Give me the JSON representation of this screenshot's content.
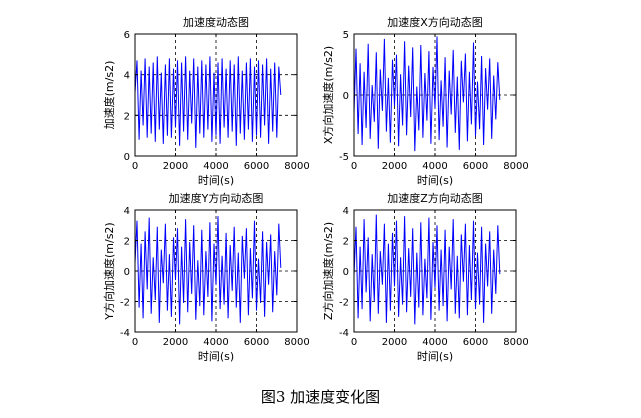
{
  "caption": "图3 加速度变化图",
  "chart_data": [
    {
      "type": "line",
      "title": "加速度动态图",
      "xlabel": "时间(s)",
      "ylabel": "加速度(m/s2)",
      "xlim": [
        0,
        8000
      ],
      "ylim": [
        0,
        6
      ],
      "xticks": [
        0,
        2000,
        4000,
        6000,
        8000
      ],
      "yticks": [
        0,
        2,
        4,
        6
      ],
      "grid": "dashed",
      "series": [
        {
          "color": "#0000ff",
          "x": [
            0,
            100,
            200,
            300,
            400,
            500,
            600,
            700,
            800,
            900,
            1000,
            1100,
            1200,
            1300,
            1400,
            1500,
            1600,
            1700,
            1800,
            1900,
            2000,
            2100,
            2200,
            2300,
            2400,
            2500,
            2600,
            2700,
            2800,
            2900,
            3000,
            3100,
            3200,
            3300,
            3400,
            3500,
            3600,
            3700,
            3800,
            3900,
            4000,
            4100,
            4200,
            4300,
            4400,
            4500,
            4600,
            4700,
            4800,
            4900,
            5000,
            5100,
            5200,
            5300,
            5400,
            5500,
            5600,
            5700,
            5800,
            5900,
            6000,
            6100,
            6200,
            6300,
            6400,
            6500,
            6600,
            6700,
            6800,
            6900,
            7000,
            7100,
            7200
          ],
          "y": [
            3.1,
            4.7,
            0.8,
            4.2,
            1.5,
            4.8,
            0.9,
            4.4,
            1.1,
            4.6,
            0.7,
            4.9,
            1.3,
            4.1,
            0.6,
            4.5,
            1.0,
            4.8,
            0.9,
            4.3,
            1.4,
            4.7,
            0.5,
            4.6,
            1.2,
            4.9,
            0.8,
            4.2,
            1.6,
            4.8,
            0.4,
            4.4,
            1.1,
            4.7,
            0.9,
            4.5,
            1.3,
            4.9,
            0.7,
            4.1,
            1.0,
            4.6,
            0.6,
            4.8,
            1.4,
            4.3,
            0.9,
            4.7,
            1.2,
            4.5,
            0.5,
            4.9,
            1.1,
            4.2,
            0.8,
            4.6,
            1.3,
            4.8,
            0.7,
            4.4,
            1.0,
            4.7,
            0.9,
            4.5,
            1.5,
            4.8,
            0.6,
            4.3,
            1.2,
            4.6,
            0.9,
            4.4,
            3.0
          ]
        }
      ]
    },
    {
      "type": "line",
      "title": "加速度X方向动态图",
      "xlabel": "时间(s)",
      "ylabel": "X方向加速度(m/s2)",
      "xlim": [
        0,
        8000
      ],
      "ylim": [
        -5,
        5
      ],
      "xticks": [
        0,
        2000,
        4000,
        6000,
        8000
      ],
      "yticks": [
        -5,
        0,
        5
      ],
      "grid": "dashed",
      "series": [
        {
          "color": "#0000ff",
          "x": [
            0,
            100,
            200,
            300,
            400,
            500,
            600,
            700,
            800,
            900,
            1000,
            1100,
            1200,
            1300,
            1400,
            1500,
            1600,
            1700,
            1800,
            1900,
            2000,
            2100,
            2200,
            2300,
            2400,
            2500,
            2600,
            2700,
            2800,
            2900,
            3000,
            3100,
            3200,
            3300,
            3400,
            3500,
            3600,
            3700,
            3800,
            3900,
            4000,
            4100,
            4200,
            4300,
            4400,
            4500,
            4600,
            4700,
            4800,
            4900,
            5000,
            5100,
            5200,
            5300,
            5400,
            5500,
            5600,
            5700,
            5800,
            5900,
            6000,
            6100,
            6200,
            6300,
            6400,
            6500,
            6600,
            6700,
            6800,
            6900,
            7000,
            7100,
            7200
          ],
          "y": [
            -1.5,
            3.8,
            -3.2,
            2.6,
            -4.1,
            1.9,
            -2.7,
            4.2,
            -3.6,
            0.8,
            -2.2,
            3.5,
            -4.4,
            2.1,
            -1.3,
            4.6,
            -3.0,
            1.4,
            -3.9,
            2.9,
            -0.9,
            3.3,
            -4.2,
            1.7,
            -2.5,
            4.4,
            -3.3,
            2.4,
            -1.8,
            3.9,
            -4.6,
            0.7,
            -2.9,
            4.1,
            -3.5,
            1.8,
            -2.1,
            3.6,
            -4.0,
            2.3,
            -1.1,
            4.8,
            -3.7,
            1.2,
            -2.6,
            3.1,
            -4.3,
            2.0,
            -1.6,
            3.7,
            -3.1,
            1.5,
            -4.5,
            2.8,
            -0.6,
            3.4,
            -3.8,
            1.9,
            -2.4,
            4.3,
            -3.4,
            1.1,
            -2.8,
            3.2,
            -4.1,
            2.2,
            -1.2,
            3.0,
            -3.6,
            1.6,
            -2.0,
            2.7,
            -0.4
          ]
        }
      ]
    },
    {
      "type": "line",
      "title": "加速度Y方向动态图",
      "xlabel": "时间(s)",
      "ylabel": "Y方向加速度(m/s2)",
      "xlim": [
        0,
        8000
      ],
      "ylim": [
        -4,
        4
      ],
      "xticks": [
        0,
        2000,
        4000,
        6000,
        8000
      ],
      "yticks": [
        -4,
        -2,
        0,
        2,
        4
      ],
      "grid": "dashed",
      "series": [
        {
          "color": "#0000ff",
          "x": [
            0,
            100,
            200,
            300,
            400,
            500,
            600,
            700,
            800,
            900,
            1000,
            1100,
            1200,
            1300,
            1400,
            1500,
            1600,
            1700,
            1800,
            1900,
            2000,
            2100,
            2200,
            2300,
            2400,
            2500,
            2600,
            2700,
            2800,
            2900,
            3000,
            3100,
            3200,
            3300,
            3400,
            3500,
            3600,
            3700,
            3800,
            3900,
            4000,
            4100,
            4200,
            4300,
            4400,
            4500,
            4600,
            4700,
            4800,
            4900,
            5000,
            5100,
            5200,
            5300,
            5400,
            5500,
            5600,
            5700,
            5800,
            5900,
            6000,
            6100,
            6200,
            6300,
            6400,
            6500,
            6600,
            6700,
            6800,
            6900,
            7000,
            7100,
            7200
          ],
          "y": [
            0.5,
            3.3,
            -2.4,
            1.8,
            -3.1,
            2.6,
            -1.2,
            3.5,
            -2.8,
            0.9,
            -1.9,
            2.9,
            -3.4,
            1.4,
            -0.8,
            3.1,
            -2.6,
            1.1,
            -3.0,
            2.2,
            -0.6,
            2.8,
            -3.5,
            1.6,
            -2.1,
            3.4,
            -2.7,
            1.9,
            -1.5,
            3.0,
            -3.2,
            0.7,
            -2.3,
            2.7,
            -2.9,
            1.3,
            -1.7,
            3.2,
            -3.3,
            1.8,
            -0.9,
            3.6,
            -2.5,
            1.0,
            -2.2,
            2.5,
            -3.1,
            1.7,
            -1.3,
            2.9,
            -2.4,
            1.2,
            -3.4,
            2.3,
            -0.5,
            2.8,
            -2.9,
            1.5,
            -1.8,
            3.3,
            -2.6,
            0.8,
            -2.1,
            2.6,
            -3.0,
            1.9,
            -0.9,
            2.4,
            -2.7,
            1.3,
            -1.6,
            3.1,
            0.2
          ]
        }
      ]
    },
    {
      "type": "line",
      "title": "加速度Z方向动态图",
      "xlabel": "时间(s)",
      "ylabel": "Z方向加速度(m/s2)",
      "xlim": [
        0,
        8000
      ],
      "ylim": [
        -4,
        4
      ],
      "xticks": [
        0,
        2000,
        4000,
        6000,
        8000
      ],
      "yticks": [
        -4,
        -2,
        0,
        2,
        4
      ],
      "grid": "dashed",
      "series": [
        {
          "color": "#0000ff",
          "x": [
            0,
            100,
            200,
            300,
            400,
            500,
            600,
            700,
            800,
            900,
            1000,
            1100,
            1200,
            1300,
            1400,
            1500,
            1600,
            1700,
            1800,
            1900,
            2000,
            2100,
            2200,
            2300,
            2400,
            2500,
            2600,
            2700,
            2800,
            2900,
            3000,
            3100,
            3200,
            3300,
            3400,
            3500,
            3600,
            3700,
            3800,
            3900,
            4000,
            4100,
            4200,
            4300,
            4400,
            4500,
            4600,
            4700,
            4800,
            4900,
            5000,
            5100,
            5200,
            5300,
            5400,
            5500,
            5600,
            5700,
            5800,
            5900,
            6000,
            6100,
            6200,
            6300,
            6400,
            6500,
            6600,
            6700,
            6800,
            6900,
            7000,
            7100,
            7200
          ],
          "y": [
            -0.3,
            2.9,
            -3.1,
            1.6,
            -2.5,
            3.4,
            -1.4,
            2.2,
            -3.3,
            1.1,
            -2.0,
            3.7,
            -2.8,
            1.3,
            -0.9,
            3.1,
            -3.4,
            1.8,
            -2.6,
            2.5,
            -1.0,
            3.3,
            -3.0,
            0.9,
            -2.2,
            3.6,
            -2.7,
            1.5,
            -1.7,
            2.8,
            -3.5,
            1.2,
            -2.4,
            3.2,
            -2.9,
            0.8,
            -1.8,
            3.5,
            -3.2,
            1.9,
            -1.1,
            3.0,
            -2.6,
            1.4,
            -2.3,
            2.7,
            -3.3,
            1.6,
            -1.2,
            3.4,
            -2.8,
            1.0,
            -3.1,
            2.4,
            -0.7,
            3.1,
            -2.9,
            1.7,
            -1.9,
            3.3,
            -2.5,
            1.2,
            -2.2,
            2.9,
            -3.4,
            1.8,
            -1.0,
            2.6,
            -2.8,
            1.4,
            -1.5,
            3.0,
            -0.2
          ]
        }
      ]
    }
  ]
}
